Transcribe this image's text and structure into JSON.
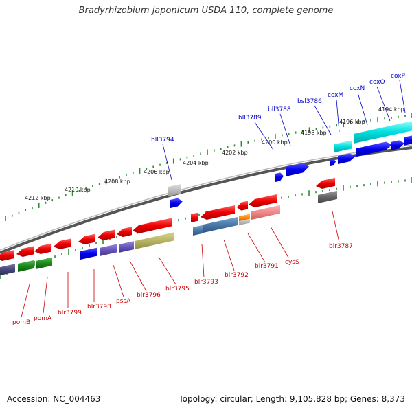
{
  "title": "Bradyrhizobium japonicum USDA 110, complete genome",
  "accession": "Accession: NC_004463",
  "summary": "Topology: circular; Length: 9,105,828 bp; Genes: 8,373",
  "colors": {
    "forward_label": "#0000cc",
    "reverse_label": "#cc0000",
    "backbone": "#888888",
    "tick": "#2e8b2e"
  },
  "ruler": [
    {
      "label": "4212 kbp"
    },
    {
      "label": "4210 kbp"
    },
    {
      "label": "4208 kbp"
    },
    {
      "label": "4206 kbp"
    },
    {
      "label": "4204 kbp"
    },
    {
      "label": "4202 kbp"
    },
    {
      "label": "4200 kbp"
    },
    {
      "label": "4198 kbp"
    },
    {
      "label": "4196 kbp"
    },
    {
      "label": "4194 kbp"
    }
  ],
  "forward_genes": [
    {
      "name": "bll3794"
    },
    {
      "name": "bll3789"
    },
    {
      "name": "bll3788"
    },
    {
      "name": "bsl3786"
    },
    {
      "name": "coxM"
    },
    {
      "name": "coxN"
    },
    {
      "name": "coxO"
    },
    {
      "name": "coxP"
    }
  ],
  "reverse_genes": [
    {
      "name": "pomB"
    },
    {
      "name": "pomA"
    },
    {
      "name": "blr3799"
    },
    {
      "name": "blr3798"
    },
    {
      "name": "pssA"
    },
    {
      "name": "blr3796"
    },
    {
      "name": "blr3795"
    },
    {
      "name": "blr3793"
    },
    {
      "name": "blr3792"
    },
    {
      "name": "blr3791"
    },
    {
      "name": "cysS"
    },
    {
      "name": "blr3787"
    }
  ]
}
